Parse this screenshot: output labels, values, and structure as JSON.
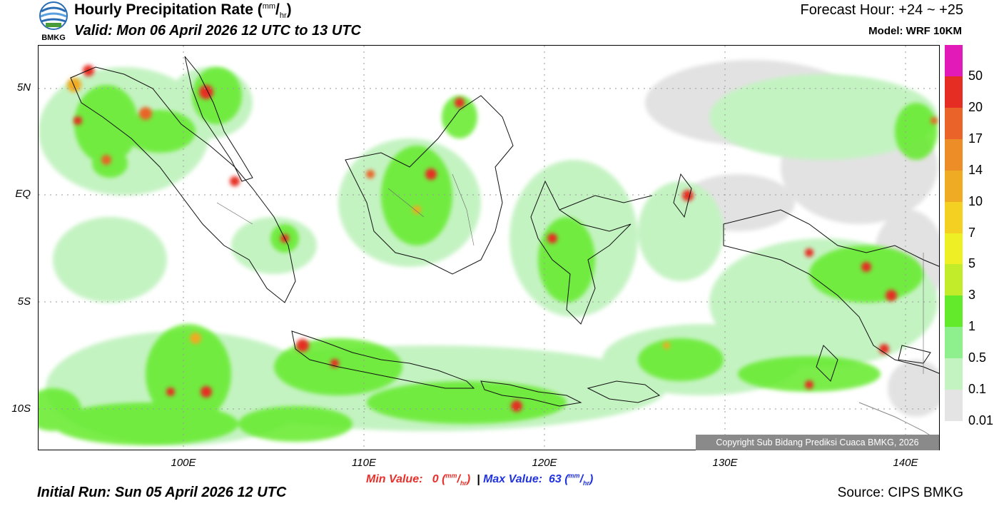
{
  "header": {
    "logo_text": "BMKG",
    "title": "Hourly Precipitation Rate (",
    "title_unit_num": "mm",
    "title_unit_sep": "/",
    "title_unit_den": "hr",
    "title_close": ")",
    "valid": "Valid: Mon 06 April 2026 12 UTC to 13 UTC",
    "forecast_hour": "Forecast Hour: +24 ~ +25",
    "model": "Model: WRF 10KM"
  },
  "map": {
    "lat_labels": [
      "5N",
      "EQ",
      "5S",
      "10S"
    ],
    "lon_labels": [
      "100E",
      "110E",
      "120E",
      "130E",
      "140E"
    ],
    "copyright": "Copyright Sub Bidang Prediksi Cuaca BMKG, 2026",
    "colors": {
      "land_outline": "#000000",
      "grid": "#9a9a9a"
    }
  },
  "legend": {
    "labels": [
      "50",
      "20",
      "17",
      "14",
      "10",
      "7",
      "5",
      "3",
      "1",
      "0.5",
      "0.1",
      "0.01"
    ],
    "colors": [
      "#e21bb8",
      "#e52d24",
      "#ea6328",
      "#ed8d27",
      "#f0ab24",
      "#f3d021",
      "#efef26",
      "#c2ec2a",
      "#63ea2b",
      "#8ef08c",
      "#c4f3c2",
      "#e4e4e4"
    ]
  },
  "footer": {
    "min_label": "Min Value:",
    "min_value": "0",
    "max_label": "Max Value:",
    "max_value": "63",
    "unit_num": "mm",
    "unit_den": "hr",
    "separator": "|",
    "initial_run": "Initial Run: Sun 05 April 2026 12 UTC",
    "source": "Source: CIPS BMKG"
  }
}
